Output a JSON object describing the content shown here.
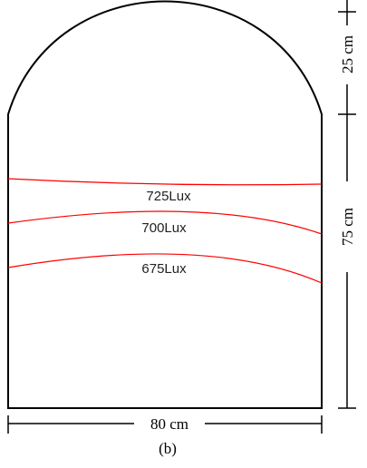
{
  "figure": {
    "caption": "(b)"
  },
  "dimensions": {
    "arch_height_label": "25 cm",
    "wall_height_label": "75 cm",
    "width_label": "80 cm"
  },
  "isolux_contours": [
    {
      "label": "725Lux",
      "value": 725
    },
    {
      "label": "700Lux",
      "value": 700
    },
    {
      "label": "675Lux",
      "value": 675
    }
  ],
  "colors": {
    "outline": "#000000",
    "contour": "#ff0000"
  }
}
